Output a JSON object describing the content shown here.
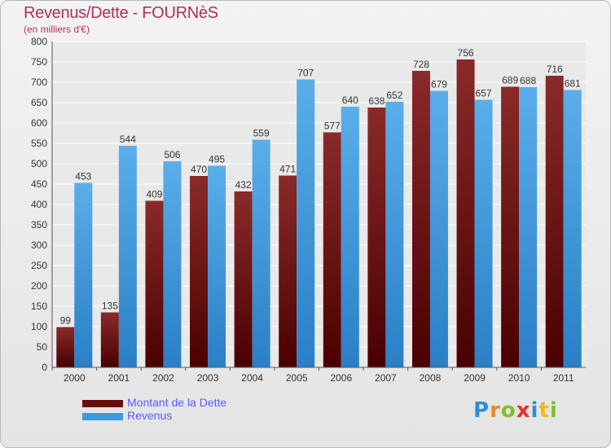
{
  "header": {
    "title": "Revenus/Dette - FOURNèS",
    "subtitle": "(en milliers d'€)"
  },
  "chart_data": {
    "type": "bar",
    "categories": [
      "2000",
      "2001",
      "2002",
      "2003",
      "2004",
      "2005",
      "2006",
      "2007",
      "2008",
      "2009",
      "2010",
      "2011"
    ],
    "series": [
      {
        "name": "Montant de la Dette",
        "color": "#7a1010",
        "values": [
          99,
          135,
          409,
          470,
          432,
          471,
          577,
          638,
          728,
          756,
          689,
          716
        ]
      },
      {
        "name": "Revenus",
        "color": "#3d99e0",
        "values": [
          453,
          544,
          506,
          495,
          559,
          707,
          640,
          652,
          679,
          657,
          688,
          681
        ]
      }
    ],
    "yticks": [
      0,
      50,
      100,
      150,
      200,
      250,
      300,
      350,
      400,
      450,
      500,
      550,
      600,
      650,
      700,
      750,
      800
    ],
    "ylim": [
      0,
      800
    ],
    "grid": true,
    "legend_position": "bottom-left"
  },
  "legend": {
    "items": [
      {
        "label": "Montant de la Dette",
        "color": "#6b0c0c"
      },
      {
        "label": "Revenus",
        "color": "#3d99e0"
      }
    ]
  },
  "logo": {
    "text": "Proxiti",
    "letters": [
      {
        "ch": "P",
        "color": "#2f8fd8"
      },
      {
        "ch": "r",
        "color": "#f08a1c"
      },
      {
        "ch": "o",
        "color": "#7dbf2a"
      },
      {
        "ch": "x",
        "color": "#e8312a"
      },
      {
        "ch": "i",
        "color": "#2f8fd8"
      },
      {
        "ch": "t",
        "color": "#f0b81c"
      },
      {
        "ch": "i",
        "color": "#7dbf2a"
      }
    ]
  }
}
